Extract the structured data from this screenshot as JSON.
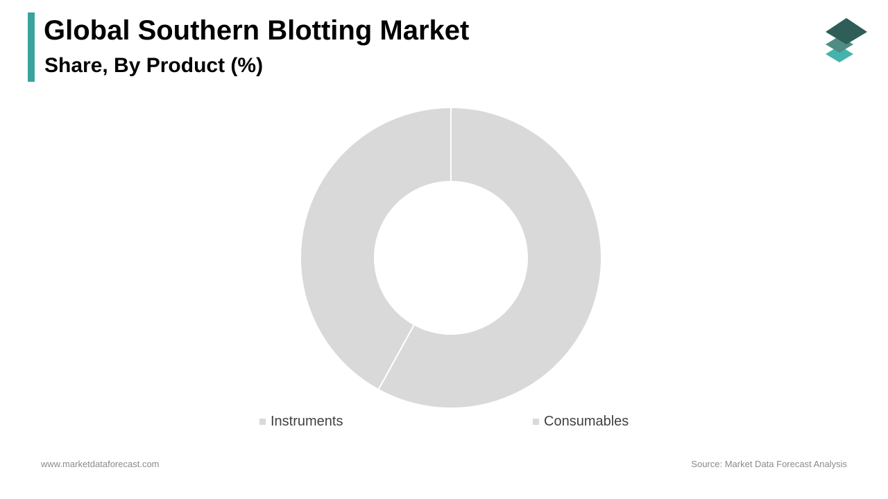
{
  "header": {
    "title": "Global Southern Blotting Market",
    "subtitle": "Share, By Product (%)"
  },
  "chart_data": {
    "type": "pie",
    "donut": true,
    "categories": [
      "Instruments",
      "Consumables"
    ],
    "values": [
      42,
      58
    ],
    "slice_color": "#d9d9d9",
    "legend_position": "bottom"
  },
  "legend": [
    {
      "label": "Instruments"
    },
    {
      "label": "Consumables"
    }
  ],
  "footer": {
    "website": "www.marketdataforecast.com",
    "source": "Source: Market Data Forecast Analysis"
  },
  "colors": {
    "accent": "#3aa39c",
    "logo_top": "#2e5e57",
    "logo_middle": "#4f8c84",
    "logo_bottom": "#45b3ad",
    "legend_swatch": "#d9d9d9"
  }
}
